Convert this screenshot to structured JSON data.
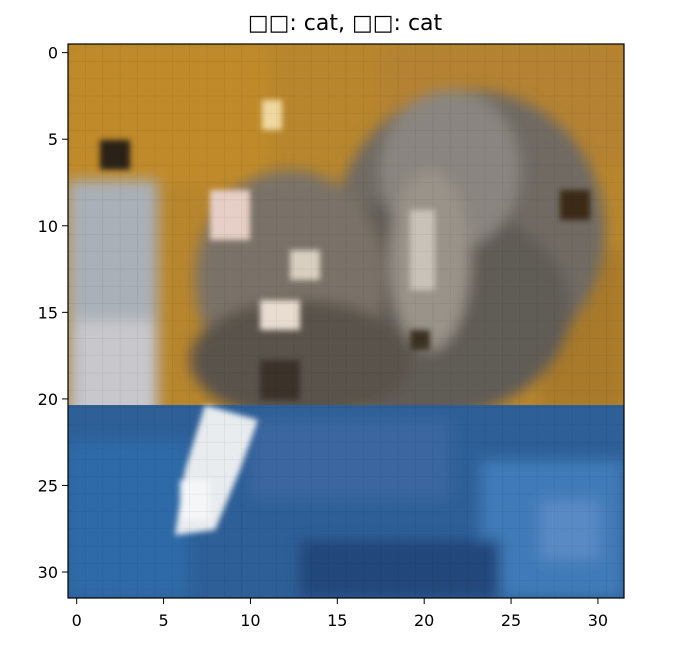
{
  "figure": {
    "title": "□□: cat, □□: cat",
    "image_label": "cat photo (pixelated 32x32)"
  },
  "axes": {
    "x_ticks": [
      "0",
      "5",
      "10",
      "15",
      "20",
      "25",
      "30"
    ],
    "y_ticks": [
      "0",
      "5",
      "10",
      "15",
      "20",
      "25",
      "30"
    ],
    "x_range": [
      -0.5,
      31.5
    ],
    "y_range": [
      -0.5,
      31.5
    ]
  },
  "colors": {
    "background_wall": "#b8862d",
    "cat_fur": "#7a7266",
    "blue_cloth": "#2e5f97",
    "white_patch": "#e8e8ec"
  }
}
